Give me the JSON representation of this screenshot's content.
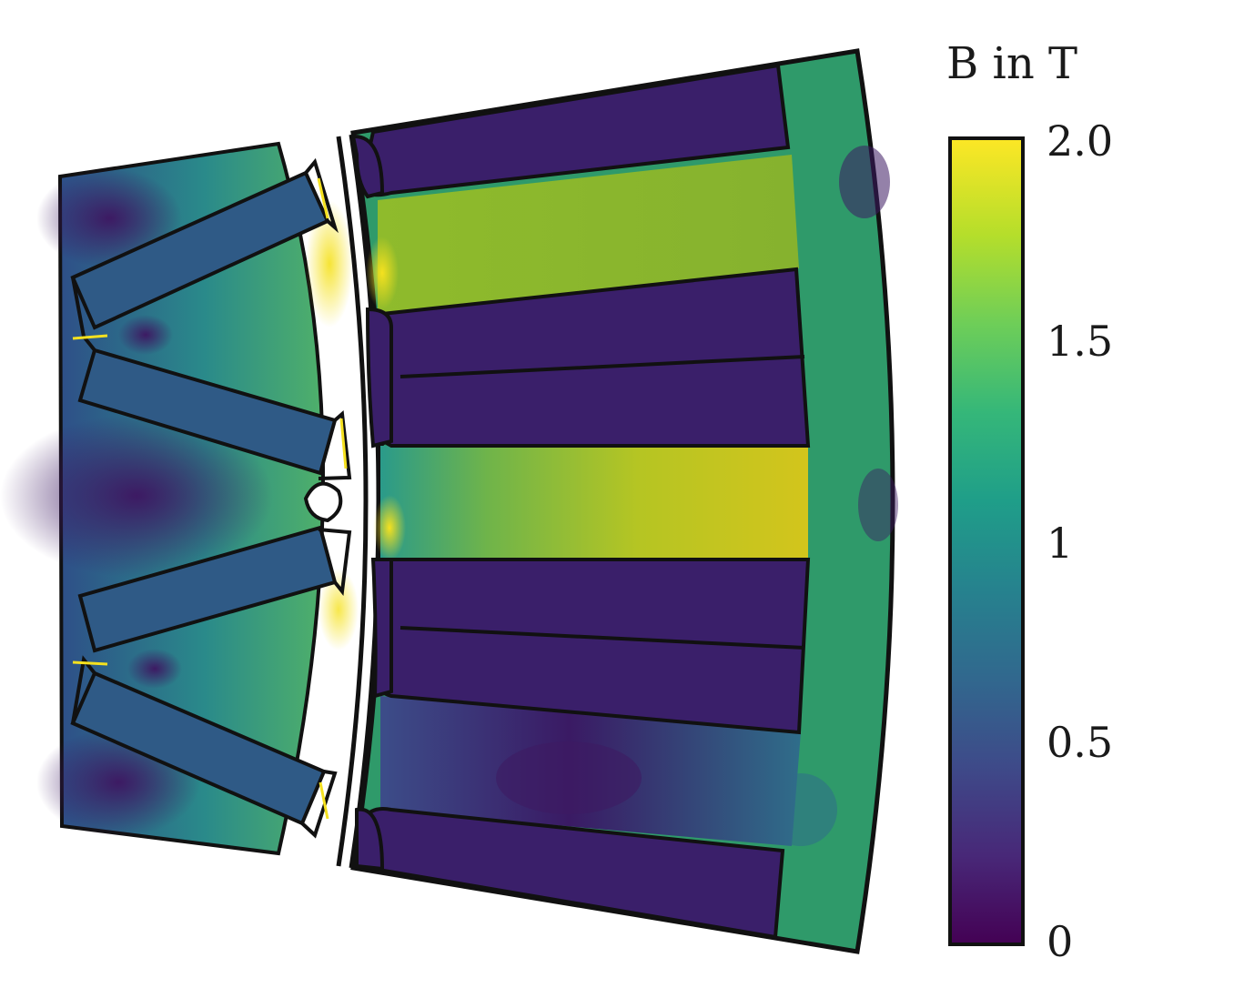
{
  "colorbar": {
    "title": "B in T",
    "ticks": [
      "2.0",
      "1.5",
      "1",
      "0.5",
      "0"
    ],
    "min": 0,
    "max": 2.0,
    "colormap": "viridis",
    "stops": [
      "#440154",
      "#482878",
      "#3e4a89",
      "#31688e",
      "#26828e",
      "#1f9e89",
      "#35b779",
      "#6ece58",
      "#b5de2b",
      "#fde725"
    ]
  },
  "figure": {
    "outline_color": "#111111",
    "stator_yoke_color": "#2f9a6a",
    "stator_slot_color": "#3a1f6a",
    "tooth_high_color": "#c6c91f",
    "tooth_mid_color": "#8db52f",
    "rotor_core_color": "#2c6e8e",
    "magnet_color": "#2f5a86",
    "saturation_color": "#f5e11f",
    "field_minimum_color": "#3d1a63"
  }
}
